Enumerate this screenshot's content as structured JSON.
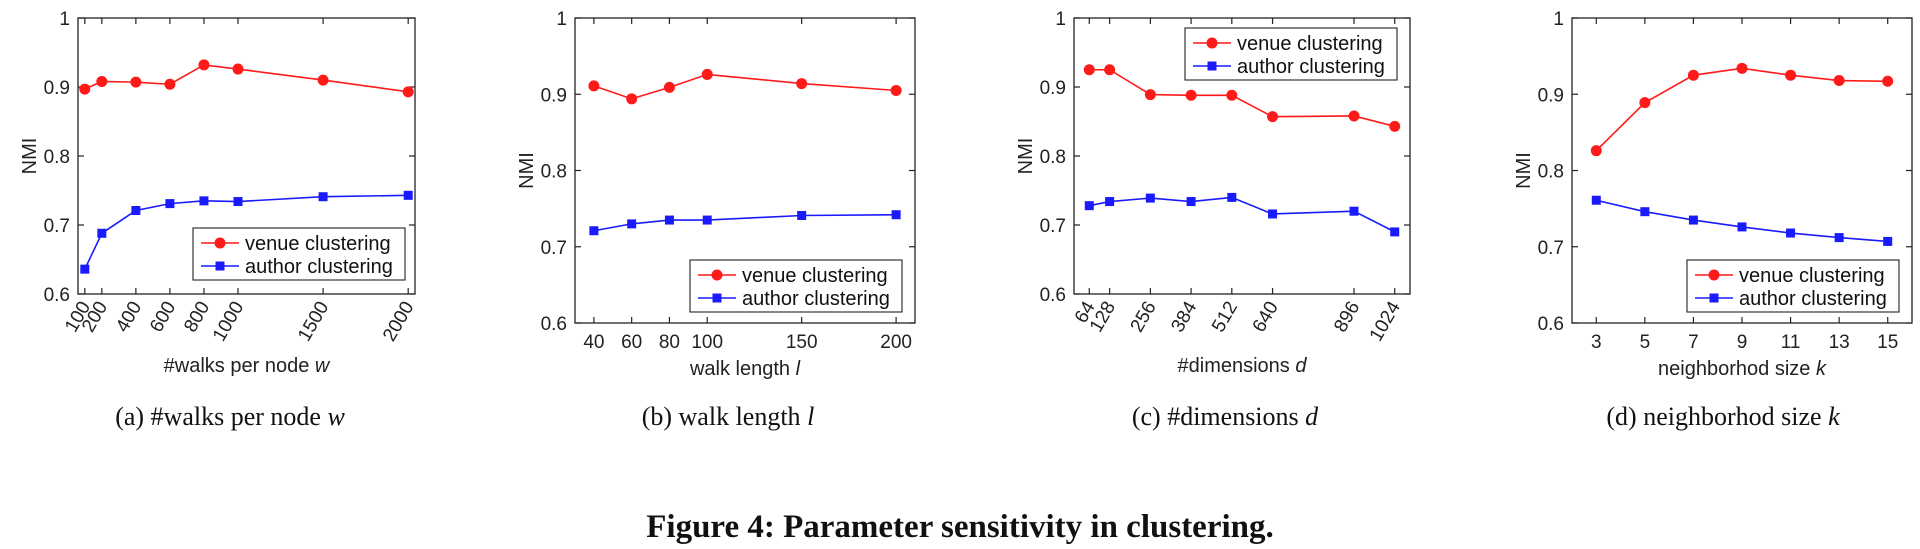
{
  "figure_title": "Figure 4:  Parameter sensitivity in clustering.",
  "colors": {
    "venue": "#ff1a1a",
    "author": "#1a1aff",
    "axis": "#222222"
  },
  "chart_data": [
    {
      "type": "line",
      "caption_tag": "(a)",
      "caption_text": "#walks per node ",
      "caption_var": "w",
      "xlabel": "#walks per node ",
      "xlabel_var": "w",
      "ylabel": "NMI",
      "xlim": [
        60,
        2040
      ],
      "ylim": [
        0.6,
        1
      ],
      "yticks": [
        0.6,
        0.7,
        0.8,
        0.9,
        1
      ],
      "yticklabels": [
        "0.6",
        "0.7",
        "0.8",
        "0.9",
        "1"
      ],
      "xticks": [
        100,
        200,
        400,
        600,
        800,
        1000,
        1500,
        2000
      ],
      "xticklabels": [
        "100",
        "200",
        "400",
        "600",
        "800",
        "1000",
        "1500",
        "2000"
      ],
      "xtick_rotated": true,
      "legend_position": "lower-right",
      "series": [
        {
          "name": "venue clustering",
          "marker": "circle",
          "x": [
            100,
            200,
            400,
            600,
            800,
            1000,
            1500,
            2000
          ],
          "values": [
            0.897,
            0.908,
            0.907,
            0.904,
            0.932,
            0.926,
            0.91,
            0.893
          ]
        },
        {
          "name": "author clustering",
          "marker": "square",
          "x": [
            100,
            200,
            400,
            600,
            800,
            1000,
            1500,
            2000
          ],
          "values": [
            0.636,
            0.688,
            0.721,
            0.731,
            0.735,
            0.734,
            0.741,
            0.743
          ]
        }
      ]
    },
    {
      "type": "line",
      "caption_tag": "(b)",
      "caption_text": "walk length ",
      "caption_var": "l",
      "xlabel": "walk length ",
      "xlabel_var": "l",
      "ylabel": "NMI",
      "xlim": [
        30,
        210
      ],
      "ylim": [
        0.6,
        1
      ],
      "yticks": [
        0.6,
        0.7,
        0.8,
        0.9,
        1
      ],
      "yticklabels": [
        "0.6",
        "0.7",
        "0.8",
        "0.9",
        "1"
      ],
      "xticks": [
        40,
        60,
        80,
        100,
        150,
        200
      ],
      "xticklabels": [
        "40",
        "60",
        "80",
        "100",
        "150",
        "200"
      ],
      "xtick_rotated": false,
      "legend_position": "lower-right",
      "series": [
        {
          "name": "venue clustering",
          "marker": "circle",
          "x": [
            40,
            60,
            80,
            100,
            150,
            200
          ],
          "values": [
            0.911,
            0.894,
            0.909,
            0.926,
            0.914,
            0.905
          ]
        },
        {
          "name": "author clustering",
          "marker": "square",
          "x": [
            40,
            60,
            80,
            100,
            150,
            200
          ],
          "values": [
            0.721,
            0.73,
            0.735,
            0.735,
            0.741,
            0.742
          ]
        }
      ]
    },
    {
      "type": "line",
      "caption_tag": "(c)",
      "caption_text": "#dimensions ",
      "caption_var": "d",
      "xlabel": "#dimensions ",
      "xlabel_var": "d",
      "ylabel": "NMI",
      "xlim": [
        16,
        1072
      ],
      "ylim": [
        0.6,
        1
      ],
      "yticks": [
        0.6,
        0.7,
        0.8,
        0.9,
        1
      ],
      "yticklabels": [
        "0.6",
        "0.7",
        "0.8",
        "0.9",
        "1"
      ],
      "xticks": [
        64,
        128,
        256,
        384,
        512,
        640,
        896,
        1024
      ],
      "xticklabels": [
        "64",
        "128",
        "256",
        "384",
        "512",
        "640",
        "896",
        "1024"
      ],
      "xtick_rotated": true,
      "legend_position": "top-right",
      "series": [
        {
          "name": "venue clustering",
          "marker": "circle",
          "x": [
            64,
            128,
            256,
            384,
            512,
            640,
            896,
            1024
          ],
          "values": [
            0.925,
            0.925,
            0.889,
            0.888,
            0.888,
            0.857,
            0.858,
            0.843
          ]
        },
        {
          "name": "author clustering",
          "marker": "square",
          "x": [
            64,
            128,
            256,
            384,
            512,
            640,
            896,
            1024
          ],
          "values": [
            0.728,
            0.734,
            0.739,
            0.734,
            0.74,
            0.716,
            0.72,
            0.69
          ]
        }
      ]
    },
    {
      "type": "line",
      "caption_tag": "(d)",
      "caption_text": "neighborhod size ",
      "caption_var": "k",
      "xlabel": "neighborhod size ",
      "xlabel_var": "k",
      "ylabel": "NMI",
      "xlim": [
        2,
        16
      ],
      "ylim": [
        0.6,
        1
      ],
      "yticks": [
        0.6,
        0.7,
        0.8,
        0.9,
        1
      ],
      "yticklabels": [
        "0.6",
        "0.7",
        "0.8",
        "0.9",
        "1"
      ],
      "xticks": [
        3,
        5,
        7,
        9,
        11,
        13,
        15
      ],
      "xticklabels": [
        "3",
        "5",
        "7",
        "9",
        "11",
        "13",
        "15"
      ],
      "xtick_rotated": false,
      "legend_position": "lower-right",
      "series": [
        {
          "name": "venue clustering",
          "marker": "circle",
          "x": [
            3,
            5,
            7,
            9,
            11,
            13,
            15
          ],
          "values": [
            0.826,
            0.889,
            0.925,
            0.934,
            0.925,
            0.918,
            0.917
          ]
        },
        {
          "name": "author clustering",
          "marker": "square",
          "x": [
            3,
            5,
            7,
            9,
            11,
            13,
            15
          ],
          "values": [
            0.761,
            0.746,
            0.735,
            0.726,
            0.718,
            0.712,
            0.707
          ]
        }
      ]
    }
  ]
}
